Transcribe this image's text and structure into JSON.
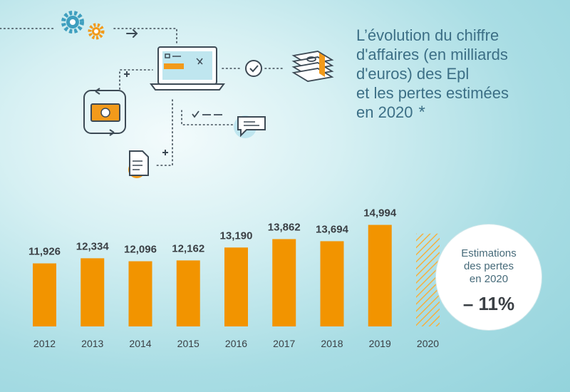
{
  "title_lines": [
    "L’évolution du chiffre",
    "d'affaires (en milliards",
    "d'euros) des Epl",
    "et les pertes estimées",
    "en 2020"
  ],
  "title_asterisk": "*",
  "badge": {
    "lines": [
      "Estimations",
      "des pertes",
      "en 2020"
    ],
    "value": "– 11%"
  },
  "colors": {
    "bar": "#f29400",
    "label": "#3a3f44",
    "hatch": "#f5b040",
    "title": "#3c6f86",
    "icon_blue": "#3f9fbf",
    "icon_orange": "#f29a1a"
  },
  "icons": [
    "gear-icon",
    "gear-icon",
    "arrow-right-icon",
    "laptop-icon",
    "checkmark-icon",
    "money-stack-icon",
    "money-exchange-icon",
    "plus-icon",
    "plus-icon",
    "checklist-icon",
    "chat-bubble-icon",
    "document-icon"
  ],
  "chart_data": {
    "type": "bar",
    "categories": [
      "2012",
      "2013",
      "2014",
      "2015",
      "2016",
      "2017",
      "2018",
      "2019",
      "2020"
    ],
    "values": [
      11.926,
      12.334,
      12.096,
      12.162,
      13.19,
      13.862,
      13.694,
      14.994,
      null
    ],
    "data_labels": [
      "11,926",
      "12,334",
      "12,096",
      "12,162",
      "13,190",
      "13,862",
      "13,694",
      "14,994",
      ""
    ],
    "estimated": [
      "2020"
    ],
    "ylim": [
      6.9,
      15.9
    ],
    "grid": false,
    "legend": "none"
  }
}
